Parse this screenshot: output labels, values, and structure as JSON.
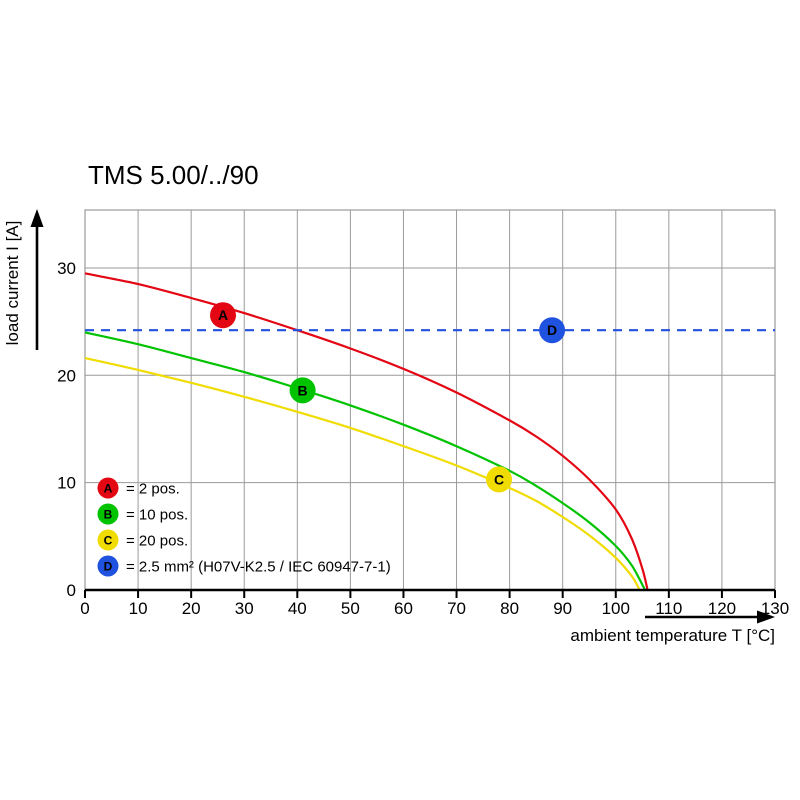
{
  "title": "TMS 5.00/../90",
  "chart_data": {
    "type": "line",
    "title": "TMS 5.00/../90",
    "xlabel": "ambient temperature T [°C]",
    "ylabel": "load current I [A]",
    "xlim": [
      0,
      130
    ],
    "ylim": [
      0,
      35.4
    ],
    "xticks": [
      0,
      10,
      20,
      30,
      40,
      50,
      60,
      70,
      80,
      90,
      100,
      110,
      120,
      130
    ],
    "yticks": [
      0,
      10,
      20,
      30
    ],
    "grid": true,
    "grid_color": "#9a9a9a",
    "legend_position": "inside-bottom-left",
    "series": [
      {
        "name": "A",
        "label": "= 2 pos.",
        "color": "#e30613",
        "style": "solid",
        "points": [
          [
            0,
            29.5
          ],
          [
            10,
            28.5
          ],
          [
            20,
            27.2
          ],
          [
            30,
            25.8
          ],
          [
            40,
            24.2
          ],
          [
            50,
            22.5
          ],
          [
            60,
            20.6
          ],
          [
            70,
            18.4
          ],
          [
            80,
            15.8
          ],
          [
            85,
            14.3
          ],
          [
            90,
            12.5
          ],
          [
            95,
            10.3
          ],
          [
            100,
            7.5
          ],
          [
            103,
            4.8
          ],
          [
            105,
            2.0
          ],
          [
            106,
            0
          ]
        ],
        "marker": {
          "x": 26,
          "y": 25.6
        }
      },
      {
        "name": "B",
        "label": "= 10 pos.",
        "color": "#00c300",
        "style": "solid",
        "points": [
          [
            0,
            24.0
          ],
          [
            10,
            22.9
          ],
          [
            20,
            21.6
          ],
          [
            30,
            20.3
          ],
          [
            40,
            18.8
          ],
          [
            50,
            17.2
          ],
          [
            60,
            15.4
          ],
          [
            70,
            13.4
          ],
          [
            80,
            11.1
          ],
          [
            85,
            9.7
          ],
          [
            90,
            8.1
          ],
          [
            95,
            6.3
          ],
          [
            100,
            4.1
          ],
          [
            103,
            2.3
          ],
          [
            105,
            0.5
          ],
          [
            105.5,
            0
          ]
        ],
        "marker": {
          "x": 41,
          "y": 18.6
        }
      },
      {
        "name": "C",
        "label": "= 20 pos.",
        "color": "#f0dc00",
        "style": "solid",
        "points": [
          [
            0,
            21.6
          ],
          [
            10,
            20.5
          ],
          [
            20,
            19.3
          ],
          [
            30,
            18.0
          ],
          [
            40,
            16.6
          ],
          [
            50,
            15.1
          ],
          [
            60,
            13.4
          ],
          [
            70,
            11.6
          ],
          [
            80,
            9.5
          ],
          [
            85,
            8.3
          ],
          [
            90,
            6.8
          ],
          [
            95,
            5.1
          ],
          [
            100,
            3.0
          ],
          [
            103,
            1.3
          ],
          [
            104.5,
            0
          ]
        ],
        "marker": {
          "x": 78,
          "y": 10.3
        }
      },
      {
        "name": "D",
        "label": "= 2.5 mm² (H07V-K2.5 / IEC 60947-7-1)",
        "color": "#2052e0",
        "style": "dashed",
        "value": 24,
        "points": [
          [
            0,
            24.2
          ],
          [
            130,
            24.2
          ]
        ],
        "marker": {
          "x": 88,
          "y": 24.2
        }
      }
    ]
  }
}
